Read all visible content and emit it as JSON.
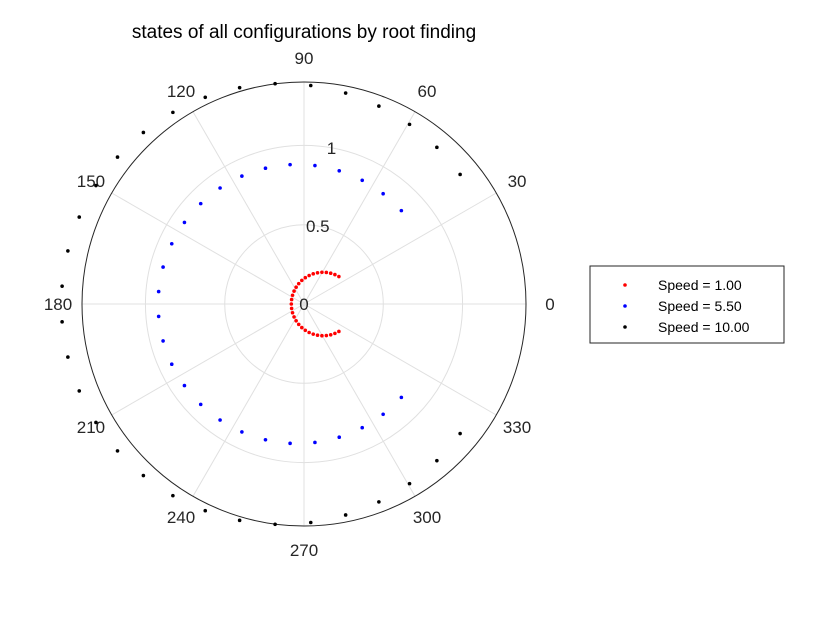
{
  "chart_data": {
    "type": "scatter",
    "subtype": "polar",
    "title": "states of all configurations by root finding",
    "theta_units": "degrees",
    "theta_ticks": [
      0,
      30,
      60,
      90,
      120,
      150,
      180,
      210,
      240,
      270,
      300,
      330
    ],
    "theta_tick_labels": [
      "0",
      "30",
      "60",
      "90",
      "120",
      "150",
      "180",
      "210",
      "240",
      "270",
      "300",
      "330"
    ],
    "r_ticks": [
      0,
      0.5,
      1
    ],
    "r_tick_labels": [
      "0",
      "0.5",
      "1"
    ],
    "r_tick_angle_deg": 80,
    "rlim": [
      0,
      1.4
    ],
    "grid": true,
    "legend_position": "right",
    "series": [
      {
        "name": "Speed = 1.00",
        "color": "#ff0000",
        "shape": "circle",
        "center": [
          0.12,
          0
        ],
        "radius": 0.2,
        "arc_deg": [
          60,
          300
        ],
        "count": 31
      },
      {
        "name": "Speed = 5.50",
        "color": "#0000ff",
        "shape": "circle",
        "center": [
          -0.04,
          0
        ],
        "radius": 0.88,
        "arc_deg": [
          42,
          318
        ],
        "count": 28
      },
      {
        "name": "Speed = 10.00",
        "color": "#000000",
        "shape": "circle",
        "center": [
          -0.14,
          0
        ],
        "radius": 1.39,
        "arc_deg": [
          36,
          324
        ],
        "count": 32
      }
    ]
  }
}
